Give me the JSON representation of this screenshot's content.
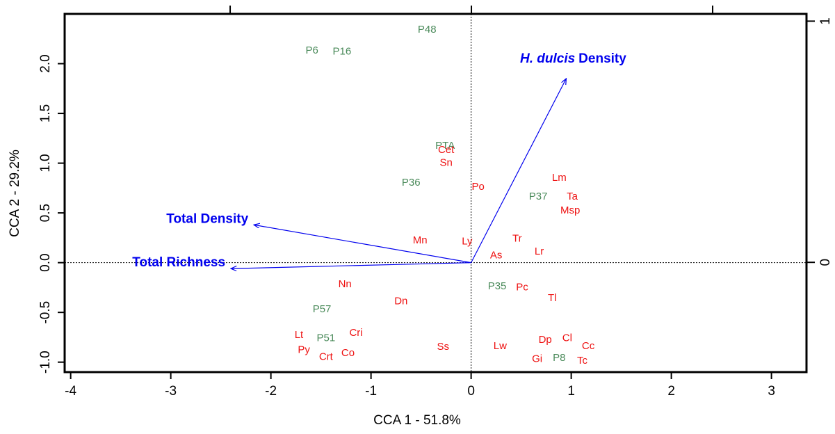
{
  "chart_data": {
    "type": "biplot",
    "x_label": "CCA 1 - 51.8%",
    "y_label": "CCA 2 - 29.2%",
    "xlim": [
      -4.06,
      3.35
    ],
    "ylim": [
      -1.1,
      2.5
    ],
    "xticks": [
      -4,
      -3,
      -2,
      -1,
      0,
      1,
      2,
      3
    ],
    "yticks": [
      {
        "value": -1,
        "label": "-1.0"
      },
      {
        "value": -0.5,
        "label": "-0.5"
      },
      {
        "value": 0,
        "label": "0.0"
      },
      {
        "value": 0.5,
        "label": "0.5"
      },
      {
        "value": 1,
        "label": "1.0"
      },
      {
        "value": 1.5,
        "label": "1.5"
      },
      {
        "value": 2,
        "label": "2.0"
      }
    ],
    "x2lim": [
      -1.686,
      1.389
    ],
    "x2ticks": [
      -1,
      0,
      1
    ],
    "y2lim": [
      -0.455,
      1.03
    ],
    "y2ticks": [
      0,
      1
    ],
    "zero_lines": true,
    "sites": {
      "color": "#4a8a5a",
      "labels": [
        "P48",
        "P6",
        "P16",
        "PTA",
        "P36",
        "P37",
        "P35",
        "P57",
        "P51",
        "P8"
      ],
      "x": [
        -0.44,
        -1.59,
        -1.29,
        -0.26,
        -0.6,
        0.67,
        0.26,
        -1.49,
        -1.45,
        0.88
      ],
      "y": [
        2.34,
        2.13,
        2.12,
        1.17,
        0.8,
        0.66,
        -0.24,
        -0.47,
        -0.76,
        -0.96
      ]
    },
    "species": {
      "color": "#ee1111",
      "labels": [
        "Cet",
        "Sn",
        "Po",
        "Lm",
        "Ta",
        "Msp",
        "Mn",
        "Ly",
        "Tr",
        "Lr",
        "As",
        "Nn",
        "Pc",
        "Tl",
        "Dn",
        "Lt",
        "Cri",
        "Py",
        "Crt",
        "Co",
        "Ss",
        "Lw",
        "Dp",
        "Cl",
        "Cc",
        "Gi",
        "Tc"
      ],
      "x": [
        -0.25,
        -0.25,
        0.07,
        0.88,
        1.01,
        0.99,
        -0.51,
        -0.04,
        0.46,
        0.68,
        0.25,
        -1.26,
        0.51,
        0.81,
        -0.7,
        -1.72,
        -1.15,
        -1.67,
        -1.45,
        -1.23,
        -0.28,
        0.29,
        0.74,
        0.96,
        1.17,
        0.66,
        1.11
      ],
      "y": [
        1.13,
        1.0,
        0.76,
        0.85,
        0.66,
        0.52,
        0.22,
        0.21,
        0.24,
        0.11,
        0.07,
        -0.22,
        -0.25,
        -0.36,
        -0.39,
        -0.73,
        -0.71,
        -0.88,
        -0.95,
        -0.91,
        -0.85,
        -0.84,
        -0.78,
        -0.76,
        -0.84,
        -0.97,
        -0.99
      ]
    },
    "arrows": {
      "color": "#0000ee",
      "items": [
        {
          "label_parts": [
            "H. dulcis",
            "Density"
          ],
          "italic": [
            true,
            false
          ],
          "x": 0.95,
          "y": 1.85
        },
        {
          "label_parts": [
            "Total Density"
          ],
          "italic": [
            false
          ],
          "x": -2.17,
          "y": 0.38
        },
        {
          "label_parts": [
            "Total Richness"
          ],
          "italic": [
            false
          ],
          "x": -2.4,
          "y": -0.06
        }
      ]
    }
  }
}
